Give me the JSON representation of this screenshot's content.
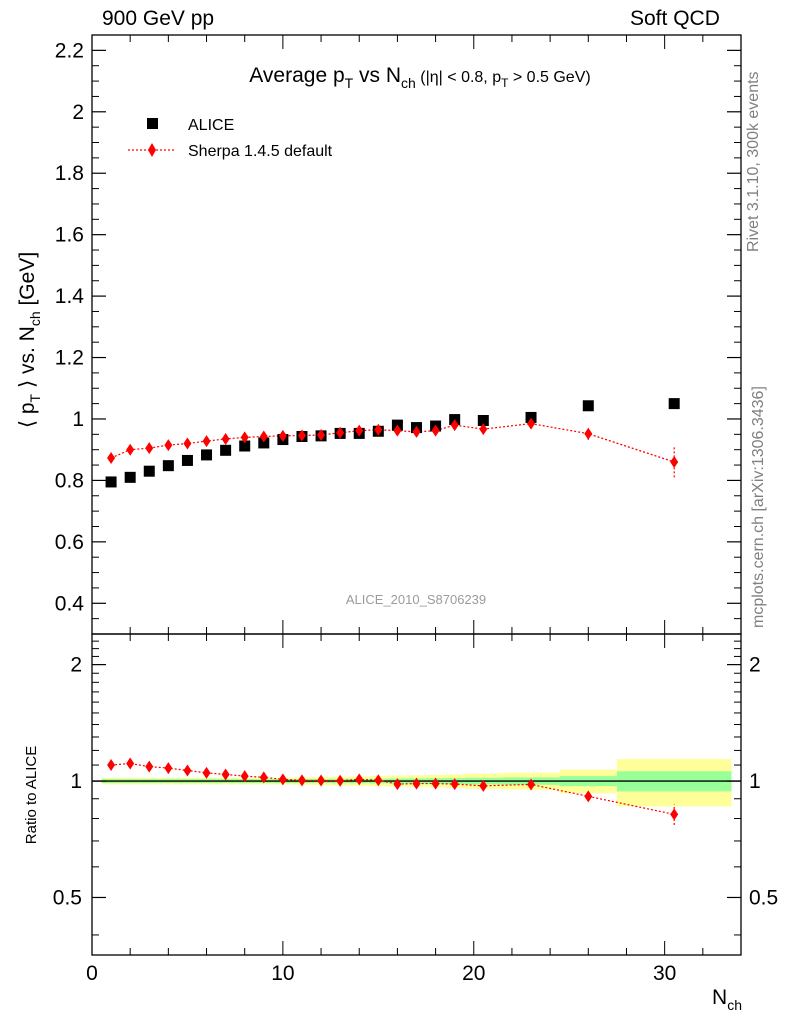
{
  "header": {
    "left": "900 GeV pp",
    "right": "Soft QCD"
  },
  "side_labels": {
    "rivet": "Rivet 3.1.10,  300k events",
    "mcplots": "mcplots.cern.ch [arXiv:1306.3436]"
  },
  "watermark": "ALICE_2010_S8706239",
  "colors": {
    "data": "#000000",
    "mc": "#ff0000",
    "band_inner": "#99ff99",
    "band_outer": "#ffff99"
  },
  "chart_data": [
    {
      "type": "scatter",
      "panel": "main",
      "title": "Average p_T vs N_ch (|η| < 0.8, p_T > 0.5 GeV)",
      "title_parts": {
        "t1": "Average p",
        "t1_sub": "T",
        "t2": " vs N",
        "t2_sub": "ch",
        "t3": " (|η| < 0.8, p",
        "t3_sub": "T",
        "t4": " > 0.5 GeV)"
      },
      "ylabel_parts": {
        "a": "⟨ p",
        "a_sub": "T",
        "b": " ⟩ vs. N",
        "b_sub": "ch",
        "c": " [GeV]"
      },
      "xlim": [
        0,
        34
      ],
      "ylim": [
        0.3,
        2.25
      ],
      "yticks": [
        0.4,
        0.6,
        0.8,
        1,
        1.2,
        1.4,
        1.6,
        1.8,
        2,
        2.2
      ],
      "ytick_labels": [
        "0.4",
        "0.6",
        "0.8",
        "1",
        "1.2",
        "1.4",
        "1.6",
        "1.8",
        "2",
        "2.2"
      ],
      "legend_position": "top-left",
      "series": [
        {
          "name": "ALICE",
          "marker": "square",
          "x": [
            1,
            2,
            3,
            4,
            5,
            6,
            7,
            8,
            9,
            10,
            11,
            12,
            13,
            14,
            15,
            16,
            17,
            18,
            19,
            20.5,
            23,
            26,
            30.5
          ],
          "y": [
            0.795,
            0.81,
            0.83,
            0.848,
            0.865,
            0.883,
            0.898,
            0.912,
            0.922,
            0.933,
            0.943,
            0.945,
            0.953,
            0.953,
            0.96,
            0.98,
            0.972,
            0.977,
            0.998,
            0.995,
            1.005,
            1.043,
            1.05
          ]
        },
        {
          "name": "Sherpa 1.4.5 default",
          "marker": "diamond",
          "line": "dotted",
          "x": [
            1,
            2,
            3,
            4,
            5,
            6,
            7,
            8,
            9,
            10,
            11,
            12,
            13,
            14,
            15,
            16,
            17,
            18,
            19,
            20.5,
            23,
            26,
            30.5
          ],
          "y": [
            0.873,
            0.9,
            0.905,
            0.915,
            0.92,
            0.928,
            0.935,
            0.94,
            0.943,
            0.945,
            0.946,
            0.948,
            0.955,
            0.962,
            0.965,
            0.962,
            0.958,
            0.962,
            0.98,
            0.967,
            0.985,
            0.952,
            0.86
          ],
          "yerr": [
            0,
            0,
            0,
            0,
            0,
            0,
            0,
            0,
            0,
            0,
            0,
            0,
            0,
            0,
            0,
            0,
            0,
            0,
            0,
            0,
            0.012,
            0.02,
            0.05
          ]
        }
      ]
    },
    {
      "type": "scatter",
      "panel": "ratio",
      "ylabel": "Ratio to ALICE",
      "xlabel_parts": {
        "a": "N",
        "a_sub": "ch"
      },
      "xlim": [
        0,
        34
      ],
      "ylim": [
        0.355,
        2.4
      ],
      "log_y": true,
      "yticks": [
        0.5,
        1,
        2
      ],
      "ytick_labels": [
        "0.5",
        "1",
        "2"
      ],
      "xticks": [
        0,
        10,
        20,
        30
      ],
      "xtick_labels": [
        "0",
        "10",
        "20",
        "30"
      ],
      "uncertainty_bands": {
        "edges": [
          0.5,
          1.5,
          2.5,
          3.5,
          4.5,
          5.5,
          6.5,
          7.5,
          8.5,
          9.5,
          10.5,
          11.5,
          12.5,
          13.5,
          14.5,
          15.5,
          16.5,
          17.5,
          18.5,
          19.5,
          21.5,
          24.5,
          27.5,
          33.5
        ],
        "inner": [
          0.012,
          0.012,
          0.012,
          0.012,
          0.012,
          0.012,
          0.012,
          0.012,
          0.012,
          0.012,
          0.012,
          0.012,
          0.013,
          0.013,
          0.014,
          0.015,
          0.016,
          0.017,
          0.018,
          0.02,
          0.022,
          0.03,
          0.06
        ],
        "outer": [
          0.02,
          0.02,
          0.02,
          0.02,
          0.02,
          0.02,
          0.02,
          0.02,
          0.02,
          0.02,
          0.022,
          0.024,
          0.026,
          0.028,
          0.03,
          0.033,
          0.035,
          0.037,
          0.04,
          0.045,
          0.05,
          0.07,
          0.14
        ]
      },
      "series": [
        {
          "name": "Sherpa 1.4.5 default",
          "marker": "diamond",
          "x": [
            1,
            2,
            3,
            4,
            5,
            6,
            7,
            8,
            9,
            10,
            11,
            12,
            13,
            14,
            15,
            16,
            17,
            18,
            19,
            20.5,
            23,
            26,
            30.5
          ],
          "y": [
            1.1,
            1.11,
            1.09,
            1.08,
            1.065,
            1.05,
            1.04,
            1.03,
            1.022,
            1.01,
            1.004,
            1.003,
            1.002,
            1.01,
            1.005,
            0.982,
            0.985,
            0.985,
            0.982,
            0.972,
            0.98,
            0.913,
            0.82
          ],
          "yerr": [
            0,
            0,
            0,
            0,
            0,
            0,
            0,
            0,
            0,
            0,
            0,
            0,
            0,
            0,
            0,
            0,
            0,
            0,
            0,
            0,
            0.012,
            0.02,
            0.05
          ]
        }
      ]
    }
  ]
}
